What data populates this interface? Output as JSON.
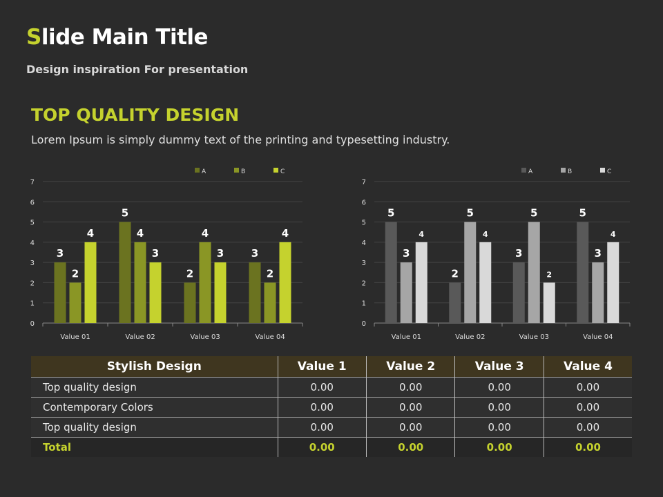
{
  "header": {
    "title_first": "S",
    "title_rest": "lide Main Title",
    "subtitle": "Design inspiration For presentation"
  },
  "section": {
    "heading": "TOP QUALITY DESIGN",
    "lead": "Lorem Ipsum is simply dummy text of the printing and typesetting industry."
  },
  "chart_data": [
    {
      "type": "bar",
      "categories": [
        "Value 01",
        "Value 02",
        "Value 03",
        "Value 04"
      ],
      "ylim": [
        0,
        7
      ],
      "yticks": [
        0,
        1,
        2,
        3,
        4,
        5,
        6,
        7
      ],
      "legend": "top-right",
      "grid": true,
      "series": [
        {
          "name": "A",
          "color": "#6b7320",
          "values": [
            3,
            5,
            2,
            3
          ]
        },
        {
          "name": "B",
          "color": "#8a9625",
          "values": [
            2,
            4,
            4,
            2
          ]
        },
        {
          "name": "C",
          "color": "#c5d22e",
          "values": [
            4,
            3,
            3,
            4
          ]
        }
      ]
    },
    {
      "type": "bar",
      "categories": [
        "Value 01",
        "Value 02",
        "Value 03",
        "Value 04"
      ],
      "ylim": [
        0,
        7
      ],
      "yticks": [
        0,
        1,
        2,
        3,
        4,
        5,
        6,
        7
      ],
      "legend": "top-right",
      "grid": true,
      "series": [
        {
          "name": "A",
          "color": "#595959",
          "values": [
            5,
            2,
            3,
            5
          ]
        },
        {
          "name": "B",
          "color": "#a6a6a6",
          "values": [
            3,
            5,
            5,
            3
          ]
        },
        {
          "name": "C",
          "color": "#d9d9d9",
          "values": [
            4,
            4,
            2,
            4
          ]
        }
      ]
    }
  ],
  "table": {
    "headers": [
      "Stylish Design",
      "Value 1",
      "Value 2",
      "Value 3",
      "Value 4"
    ],
    "rows": [
      [
        "Top quality design",
        "0.00",
        "0.00",
        "0.00",
        "0.00"
      ],
      [
        "Contemporary Colors",
        "0.00",
        "0.00",
        "0.00",
        "0.00"
      ],
      [
        "Top quality design",
        "0.00",
        "0.00",
        "0.00",
        "0.00"
      ]
    ],
    "total": [
      "Total",
      "0.00",
      "0.00",
      "0.00",
      "0.00"
    ]
  }
}
